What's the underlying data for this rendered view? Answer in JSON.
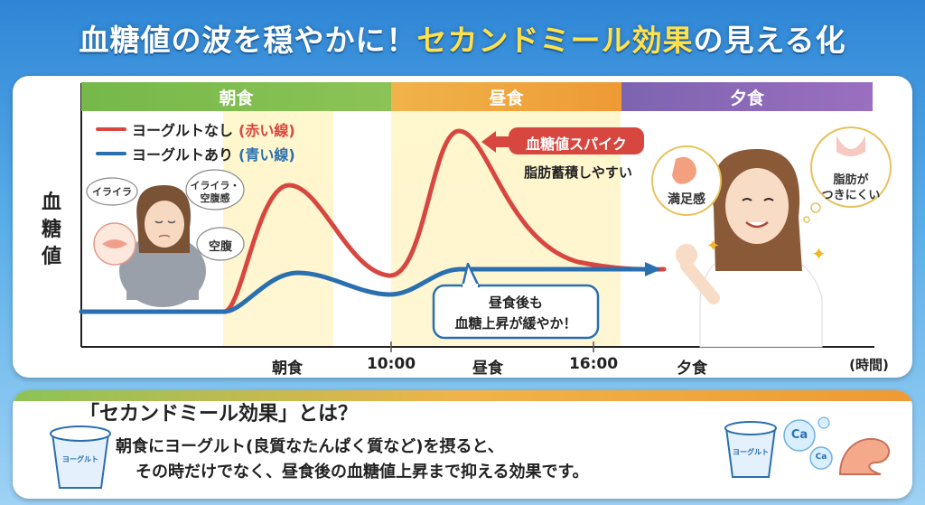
{
  "title": {
    "part1": "血糖値の波を穏やかに！",
    "highlight": "セカンドミール効果",
    "part2": "の見える化"
  },
  "bands": {
    "breakfast": "朝食",
    "lunch": "昼食",
    "dinner": "夕食"
  },
  "y_axis_label": "血糖値",
  "x_labels": {
    "breakfast": "朝食",
    "t1000": "10:00",
    "lunch": "昼食",
    "t1600": "16:00",
    "dinner": "夕食",
    "unit": "(時間)"
  },
  "legend": {
    "no_yogurt_main": "ヨーグルトなし",
    "no_yogurt_paren": "(赤い線)",
    "yogurt_main": "ヨーグルトあり",
    "yogurt_paren": "(青い線)"
  },
  "colors": {
    "red_line": "#d8473f",
    "blue_line": "#2a6fb0",
    "breakfast_band": "#7dbb4f",
    "lunch_band": "#f0a23a",
    "dinner_band": "#8a67b8"
  },
  "left_person": {
    "irritated1": "イライラ",
    "irritated2": "イライラ・",
    "hungry_feel": "空腹感",
    "hungry": "空腹"
  },
  "spike_label": "血糖値スパイク",
  "fat_storage": "脂肪蓄積しやすい",
  "after_lunch": {
    "line1": "昼食後も",
    "line2": "血糖上昇が緩やか！"
  },
  "satisfied": "満足感",
  "fat_less": {
    "line1": "脂肪が",
    "line2": "つきにくい"
  },
  "bottom": {
    "heading": "「セカンドミール効果」とは？",
    "line1": "朝食にヨーグルト(良質なたんぱく質など)を摂ると、",
    "line2": "その時だけでなく、昼食後の血糖値上昇まで抑える効果です。",
    "cup_label": "ヨーグルト",
    "ca": "Ca"
  },
  "chart_data": {
    "type": "line",
    "x": [
      "朝食",
      "10:00",
      "昼食",
      "16:00",
      "夕食"
    ],
    "series": [
      {
        "name": "ヨーグルトなし",
        "color": "#d8473f"
      },
      {
        "name": "ヨーグルトあり",
        "color": "#2a6fb0"
      }
    ],
    "ylabel": "血糖値",
    "xlabel": "(時間)",
    "grid": false
  }
}
